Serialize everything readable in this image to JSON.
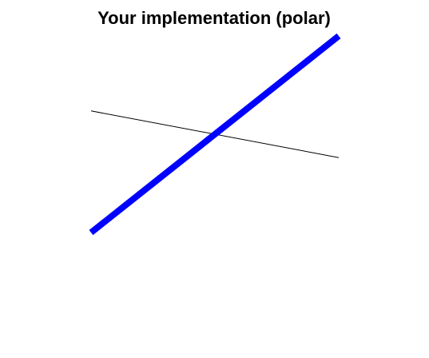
{
  "chart_data": {
    "type": "line",
    "title": "Your implementation (polar)",
    "xlabel": "",
    "ylabel": "",
    "grid": false,
    "axes_visible": false,
    "xlim": [
      -1,
      1
    ],
    "ylim": [
      -1,
      1
    ],
    "series": [
      {
        "color": "#0000ff",
        "style": "thick-solid",
        "x": [
          -1,
          1
        ],
        "y": [
          -0.8,
          0.8
        ]
      },
      {
        "color": "#000000",
        "style": "thin-solid",
        "x": [
          -1,
          1
        ],
        "y": [
          0.19,
          -0.19
        ]
      }
    ]
  }
}
